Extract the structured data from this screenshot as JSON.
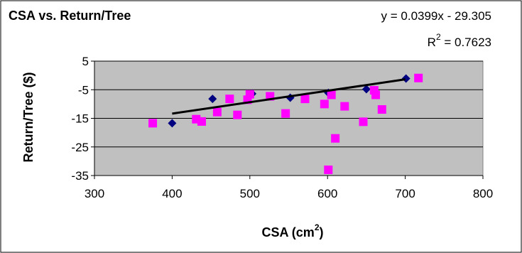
{
  "chart_data": {
    "type": "scatter",
    "title": "CSA vs. Return/Tree",
    "xlabel_main": "CSA (cm",
    "xlabel_sup": "2",
    "xlabel_end": ")",
    "ylabel": "Return/Tree ($)",
    "xlim": [
      300,
      800
    ],
    "ylim": [
      -35,
      5
    ],
    "xticks": [
      300,
      400,
      500,
      600,
      700,
      800
    ],
    "yticks": [
      5,
      -5,
      -15,
      -25,
      -35
    ],
    "grid": true,
    "plot_background": "#c0c0c0",
    "series": [
      {
        "marker": "diamond",
        "color": "#000080",
        "points": [
          [
            400,
            -16.7
          ],
          [
            452,
            -8.2
          ],
          [
            503,
            -6.4
          ],
          [
            552,
            -7.8
          ],
          [
            601,
            -6.1
          ],
          [
            650,
            -4.8
          ],
          [
            701,
            -1.1
          ]
        ]
      },
      {
        "marker": "square",
        "color": "#ff00ff",
        "points": [
          [
            375,
            -16.7
          ],
          [
            431,
            -15.3
          ],
          [
            438,
            -16.1
          ],
          [
            458,
            -12.8
          ],
          [
            474,
            -8.2
          ],
          [
            484,
            -13.8
          ],
          [
            497,
            -8.5
          ],
          [
            500,
            -6.6
          ],
          [
            526,
            -7.3
          ],
          [
            546,
            -13.3
          ],
          [
            571,
            -8.2
          ],
          [
            596,
            -10.0
          ],
          [
            601,
            -33.0
          ],
          [
            605,
            -6.8
          ],
          [
            610,
            -22.0
          ],
          [
            622,
            -10.8
          ],
          [
            646,
            -16.2
          ],
          [
            660,
            -5.2
          ],
          [
            662,
            -6.8
          ],
          [
            670,
            -11.9
          ],
          [
            717,
            -0.9
          ]
        ]
      }
    ],
    "trendline": {
      "slope": 0.0399,
      "intercept": -29.305,
      "x_range": [
        400,
        700
      ],
      "color": "#000000"
    },
    "annotations": {
      "equation": "y = 0.0399x - 29.305",
      "r2_prefix": "R",
      "r2_sup": "2",
      "r2_value": " = 0.7623"
    }
  }
}
